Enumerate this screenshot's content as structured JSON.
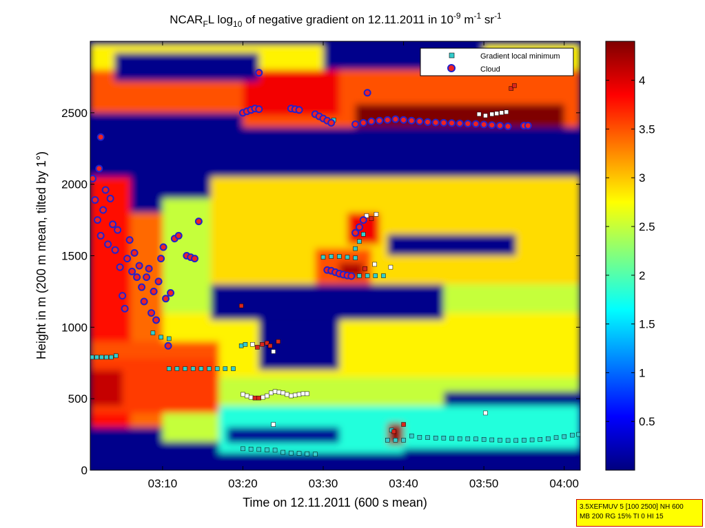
{
  "title": {
    "prefix": "NCAR",
    "prefix_sub": "F",
    "after_prefix": "L log",
    "log_sub": "10",
    "middle": " of negative gradient on 12.11.2011 in 10",
    "exp1": "-9",
    "unit1": " m",
    "exp2": "-1",
    "unit2": " sr",
    "exp3": "-1"
  },
  "chart_data": {
    "type": "heatmap",
    "xlabel": "Time on 12.11.2011 (600 s mean)",
    "ylabel": "Height in m (200 m mean, tilted by 1°)",
    "x_range_min": [
      181,
      242
    ],
    "y_range_m": [
      0,
      3000
    ],
    "x_ticks": [
      {
        "min": 190,
        "label": "03:10"
      },
      {
        "min": 200,
        "label": "03:20"
      },
      {
        "min": 210,
        "label": "03:30"
      },
      {
        "min": 220,
        "label": "03:40"
      },
      {
        "min": 230,
        "label": "03:50"
      },
      {
        "min": 240,
        "label": "04:00"
      }
    ],
    "y_ticks": [
      0,
      500,
      1000,
      1500,
      2000,
      2500
    ],
    "colorbar": {
      "range": [
        0,
        4.4
      ],
      "ticks": [
        0.5,
        1,
        1.5,
        2,
        2.5,
        3,
        3.5,
        4
      ],
      "colors": [
        "#00007f",
        "#0000ff",
        "#0080ff",
        "#00ffff",
        "#80ff80",
        "#ffff00",
        "#ff8000",
        "#ff0000",
        "#7f0000"
      ]
    },
    "legend": {
      "position": "top-right",
      "entries": [
        {
          "label": "Gradient local minimum",
          "color": "#33cccc",
          "marker": "square"
        },
        {
          "label": "Cloud",
          "color": "#ee2222",
          "edge": "#2222cc",
          "marker": "circle"
        }
      ]
    },
    "field_regions": [
      {
        "t": [
          181,
          242
        ],
        "h": [
          0,
          3000
        ],
        "v": 0.05
      },
      {
        "t": [
          190,
          242
        ],
        "h": [
          200,
          1900
        ],
        "v": 2.5
      },
      {
        "t": [
          196,
          242
        ],
        "h": [
          1300,
          2150
        ],
        "v": 2.9
      },
      {
        "t": [
          190,
          242
        ],
        "h": [
          650,
          1100
        ],
        "v": 2.8
      },
      {
        "t": [
          196,
          225
        ],
        "h": [
          1050,
          1300
        ],
        "v": 0.05
      },
      {
        "t": [
          202,
          212
        ],
        "h": [
          700,
          1050
        ],
        "v": 0.05
      },
      {
        "t": [
          218,
          234
        ],
        "h": [
          1500,
          1650
        ],
        "v": 0.05
      },
      {
        "t": [
          225,
          242
        ],
        "h": [
          450,
          550
        ],
        "v": 0.05
      },
      {
        "t": [
          197,
          242
        ],
        "h": [
          120,
          450
        ],
        "v": 1.8
      },
      {
        "t": [
          198,
          212
        ],
        "h": [
          190,
          300
        ],
        "v": 0.1
      },
      {
        "t": [
          220,
          242
        ],
        "h": [
          60,
          150
        ],
        "v": 0.05
      },
      {
        "t": [
          181,
          186
        ],
        "h": [
          300,
          2100
        ],
        "v": 3.8
      },
      {
        "t": [
          186,
          190
        ],
        "h": [
          300,
          1800
        ],
        "v": 3.4
      },
      {
        "t": [
          181,
          197
        ],
        "h": [
          400,
          780
        ],
        "v": 3.6
      },
      {
        "t": [
          181,
          185
        ],
        "h": [
          450,
          700
        ],
        "v": 4.1
      },
      {
        "t": [
          181,
          197
        ],
        "h": [
          780,
          900
        ],
        "v": 3.5
      },
      {
        "t": [
          181,
          195
        ],
        "h": [
          0,
          200
        ],
        "v": 0.05
      },
      {
        "t": [
          209,
          216
        ],
        "h": [
          1300,
          1550
        ],
        "v": 3.5
      },
      {
        "t": [
          212,
          215
        ],
        "h": [
          1350,
          1450
        ],
        "v": 4.2
      },
      {
        "t": [
          213,
          217
        ],
        "h": [
          1580,
          1800
        ],
        "v": 3.9
      },
      {
        "t": [
          218,
          220
        ],
        "h": [
          180,
          330
        ],
        "v": 4.3
      },
      {
        "t": [
          181,
          242
        ],
        "h": [
          2050,
          2400
        ],
        "v": 0.05
      },
      {
        "t": [
          181,
          242
        ],
        "h": [
          2400,
          2800
        ],
        "v": 3.5
      },
      {
        "t": [
          214,
          240
        ],
        "h": [
          2400,
          2560
        ],
        "v": 4.4
      },
      {
        "t": [
          200,
          212
        ],
        "h": [
          2480,
          2800
        ],
        "v": 3.9
      },
      {
        "t": [
          181,
          200
        ],
        "h": [
          2250,
          2500
        ],
        "v": 0.05
      },
      {
        "t": [
          181,
          242
        ],
        "h": [
          2800,
          2980
        ],
        "v": 2.8
      },
      {
        "t": [
          184,
          202
        ],
        "h": [
          2720,
          2920
        ],
        "v": 0.05
      },
      {
        "t": [
          210,
          230
        ],
        "h": [
          2800,
          2980
        ],
        "v": 0.05
      }
    ],
    "gradient_local_minimum": [
      [
        181.2,
        790
      ],
      [
        181.8,
        790
      ],
      [
        182.4,
        790
      ],
      [
        183.0,
        790
      ],
      [
        183.6,
        790
      ],
      [
        184.2,
        800
      ],
      [
        190.8,
        710
      ],
      [
        191.8,
        710
      ],
      [
        192.8,
        710
      ],
      [
        193.8,
        710
      ],
      [
        194.8,
        710
      ],
      [
        195.8,
        710
      ],
      [
        196.8,
        710
      ],
      [
        197.8,
        710
      ],
      [
        198.8,
        710
      ],
      [
        188.8,
        960
      ],
      [
        189.8,
        930
      ],
      [
        190.8,
        920
      ],
      [
        200.0,
        150
      ],
      [
        201.0,
        148
      ],
      [
        202.0,
        145
      ],
      [
        203.0,
        142
      ],
      [
        204.0,
        140
      ],
      [
        205.0,
        125
      ],
      [
        206.0,
        120
      ],
      [
        207.0,
        118
      ],
      [
        208.0,
        115
      ],
      [
        209.0,
        112
      ],
      [
        199.8,
        870
      ],
      [
        200.3,
        880
      ],
      [
        210.0,
        1490
      ],
      [
        211.0,
        1495
      ],
      [
        212.0,
        1495
      ],
      [
        213.0,
        1490
      ],
      [
        214.0,
        1485
      ],
      [
        213.5,
        1360
      ],
      [
        214.5,
        1360
      ],
      [
        215.5,
        1360
      ],
      [
        216.5,
        1360
      ],
      [
        217.5,
        1360
      ],
      [
        214.0,
        1550
      ],
      [
        214.5,
        1600
      ],
      [
        215.0,
        1650
      ],
      [
        218.0,
        210
      ],
      [
        219.0,
        210
      ],
      [
        220.0,
        210
      ],
      [
        221.0,
        240
      ],
      [
        222.0,
        230
      ],
      [
        223.0,
        228
      ],
      [
        224.0,
        225
      ],
      [
        225.0,
        225
      ],
      [
        226.0,
        222
      ],
      [
        227.0,
        220
      ],
      [
        228.0,
        220
      ],
      [
        229.0,
        218
      ],
      [
        230.0,
        215
      ],
      [
        231.0,
        212
      ],
      [
        232.0,
        210
      ],
      [
        233.0,
        208
      ],
      [
        234.0,
        208
      ],
      [
        235.0,
        210
      ],
      [
        236.0,
        212
      ],
      [
        237.0,
        215
      ],
      [
        238.0,
        220
      ],
      [
        239.0,
        228
      ],
      [
        240.0,
        235
      ],
      [
        241.0,
        245
      ],
      [
        241.8,
        250
      ],
      [
        218.5,
        280
      ],
      [
        210.8,
        2440
      ],
      [
        211.3,
        2450
      ]
    ],
    "cloud": [
      [
        181.3,
        2040
      ],
      [
        181.6,
        1890
      ],
      [
        181.9,
        1750
      ],
      [
        182.1,
        2110
      ],
      [
        182.3,
        1640
      ],
      [
        182.6,
        1820
      ],
      [
        182.9,
        1960
      ],
      [
        183.2,
        1580
      ],
      [
        183.5,
        1900
      ],
      [
        183.8,
        1720
      ],
      [
        184.1,
        1540
      ],
      [
        184.4,
        1680
      ],
      [
        184.7,
        1420
      ],
      [
        185.0,
        1220
      ],
      [
        185.3,
        1130
      ],
      [
        185.6,
        1480
      ],
      [
        185.9,
        1610
      ],
      [
        186.2,
        1390
      ],
      [
        186.5,
        1520
      ],
      [
        186.8,
        1350
      ],
      [
        187.1,
        1430
      ],
      [
        187.4,
        1280
      ],
      [
        187.7,
        1180
      ],
      [
        188.0,
        1350
      ],
      [
        188.3,
        1410
      ],
      [
        188.6,
        1100
      ],
      [
        188.9,
        1250
      ],
      [
        189.2,
        1050
      ],
      [
        189.5,
        1320
      ],
      [
        189.8,
        1480
      ],
      [
        190.1,
        1560
      ],
      [
        190.4,
        1200
      ],
      [
        190.7,
        870
      ],
      [
        191.0,
        1240
      ],
      [
        191.5,
        1620
      ],
      [
        192.0,
        1640
      ],
      [
        193.0,
        1500
      ],
      [
        193.5,
        1490
      ],
      [
        194.0,
        1480
      ],
      [
        194.5,
        1740
      ],
      [
        182.3,
        2330
      ],
      [
        202.0,
        2780
      ],
      [
        200.0,
        2500
      ],
      [
        200.5,
        2510
      ],
      [
        201.0,
        2520
      ],
      [
        201.5,
        2530
      ],
      [
        202.0,
        2525
      ],
      [
        206.0,
        2530
      ],
      [
        206.5,
        2525
      ],
      [
        207.0,
        2520
      ],
      [
        209.0,
        2490
      ],
      [
        209.5,
        2475
      ],
      [
        210.0,
        2460
      ],
      [
        210.5,
        2445
      ],
      [
        211.0,
        2430
      ],
      [
        210.5,
        1400
      ],
      [
        211.0,
        1395
      ],
      [
        211.5,
        1385
      ],
      [
        212.0,
        1375
      ],
      [
        212.5,
        1368
      ],
      [
        213.0,
        1362
      ],
      [
        213.5,
        1358
      ],
      [
        214.0,
        1660
      ],
      [
        214.5,
        1700
      ],
      [
        215.0,
        1750
      ],
      [
        215.5,
        2640
      ],
      [
        214.0,
        2420
      ],
      [
        215.0,
        2430
      ],
      [
        216.0,
        2440
      ],
      [
        217.0,
        2445
      ],
      [
        218.0,
        2450
      ],
      [
        219.0,
        2455
      ],
      [
        220.0,
        2450
      ],
      [
        221.0,
        2445
      ],
      [
        222.0,
        2440
      ],
      [
        223.0,
        2435
      ],
      [
        224.0,
        2432
      ],
      [
        225.0,
        2430
      ],
      [
        226.0,
        2428
      ],
      [
        227.0,
        2426
      ],
      [
        228.0,
        2424
      ],
      [
        229.0,
        2422
      ],
      [
        230.0,
        2418
      ],
      [
        231.0,
        2414
      ],
      [
        232.0,
        2410
      ],
      [
        233.0,
        2405
      ],
      [
        235.0,
        2410
      ],
      [
        235.5,
        2410
      ]
    ],
    "sparse_markers": [
      [
        199.8,
        1150,
        "#d9261c"
      ],
      [
        201.2,
        880,
        "#ffffff"
      ],
      [
        201.8,
        860,
        "#d9261c"
      ],
      [
        202.4,
        880,
        "#d9261c"
      ],
      [
        203.0,
        890,
        "#d9261c"
      ],
      [
        203.4,
        870,
        "#d9261c"
      ],
      [
        203.8,
        830,
        "#ffffff"
      ],
      [
        204.4,
        900,
        "#d9261c"
      ],
      [
        200.0,
        530,
        "#ffffff"
      ],
      [
        200.5,
        520,
        "#ffffff"
      ],
      [
        201.0,
        510,
        "#ffffff"
      ],
      [
        201.5,
        505,
        "#d9261c"
      ],
      [
        202.0,
        505,
        "#d9261c"
      ],
      [
        202.5,
        510,
        "#ffffff"
      ],
      [
        203.0,
        520,
        "#ffffff"
      ],
      [
        203.5,
        540,
        "#ffffff"
      ],
      [
        204.0,
        550,
        "#ffffff"
      ],
      [
        204.5,
        545,
        "#ffffff"
      ],
      [
        205.0,
        540,
        "#ffffff"
      ],
      [
        205.5,
        530,
        "#ffffff"
      ],
      [
        206.0,
        520,
        "#ffffff"
      ],
      [
        206.5,
        525,
        "#ffffff"
      ],
      [
        207.0,
        530,
        "#ffffff"
      ],
      [
        207.5,
        535,
        "#ffffff"
      ],
      [
        208.0,
        535,
        "#ffffff"
      ],
      [
        203.8,
        320,
        "#ffffff"
      ],
      [
        215.4,
        1780,
        "#ffffff"
      ],
      [
        216.0,
        1760,
        "#d9261c"
      ],
      [
        216.6,
        1790,
        "#ffffff"
      ],
      [
        215.2,
        1410,
        "#d9261c"
      ],
      [
        216.4,
        1440,
        "#ffffff"
      ],
      [
        218.4,
        1420,
        "#ffffff"
      ],
      [
        218.8,
        270,
        "#d9261c"
      ],
      [
        220.0,
        320,
        "#d9261c"
      ],
      [
        229.4,
        2490,
        "#ffffff"
      ],
      [
        230.2,
        2480,
        "#ffffff"
      ],
      [
        231.0,
        2490,
        "#ffffff"
      ],
      [
        231.6,
        2495,
        "#ffffff"
      ],
      [
        232.2,
        2500,
        "#ffffff"
      ],
      [
        232.8,
        2505,
        "#ffffff"
      ],
      [
        233.4,
        2670,
        "#d9261c"
      ],
      [
        233.8,
        2690,
        "#d9261c"
      ],
      [
        230.2,
        400,
        "#ffffff"
      ]
    ]
  },
  "info_box": {
    "line1": "3.5XEFMUV 5 [100 2500] NH 600",
    "line2": "MB 200 RG 15% TI 0 HI 15"
  }
}
